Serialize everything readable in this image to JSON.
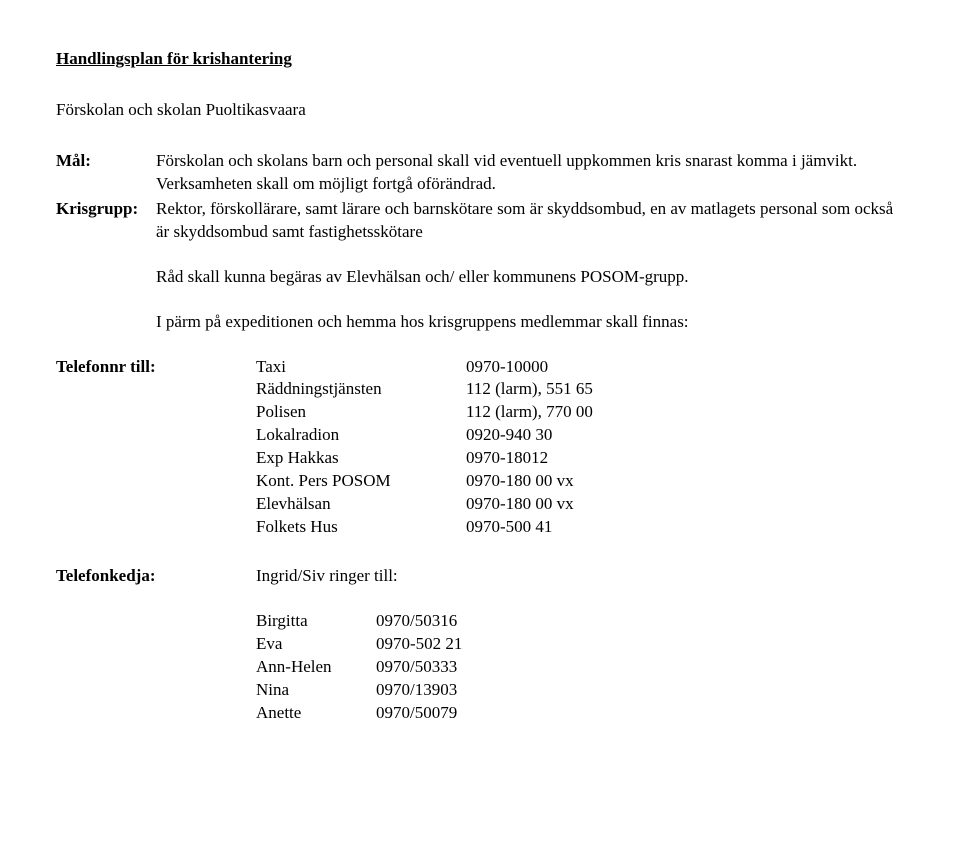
{
  "title": "Handlingsplan för krishantering",
  "subtitle": "Förskolan och skolan Puoltikasvaara",
  "goal": {
    "label": "Mål:",
    "text": "Förskolan och skolans barn och personal skall vid eventuell uppkommen kris snarast komma i jämvikt. Verksamheten skall om möjligt fortgå oförändrad."
  },
  "group": {
    "label": "Krisgrupp:",
    "text": "Rektor, förskollärare, samt lärare och barnskötare som är skyddsombud, en av matlagets personal som också är skyddsombud samt fastighetsskötare"
  },
  "advice": "Råd skall kunna begäras av Elevhälsan och/ eller kommunens POSOM-grupp.",
  "binder": "I pärm på expeditionen och hemma hos krisgruppens medlemmar skall finnas:",
  "phones": {
    "label": "Telefonnr till:",
    "rows": [
      {
        "name": "Taxi",
        "num": "0970-10000"
      },
      {
        "name": "Räddningstjänsten",
        "num": "112 (larm), 551 65"
      },
      {
        "name": "Polisen",
        "num": "112 (larm), 770 00"
      },
      {
        "name": "Lokalradion",
        "num": "0920-940 30"
      },
      {
        "name": "Exp Hakkas",
        "num": "0970-18012"
      },
      {
        "name": "Kont. Pers POSOM",
        "num": "0970-180 00 vx"
      },
      {
        "name": "Elevhälsan",
        "num": "0970-180 00 vx"
      },
      {
        "name": "Folkets Hus",
        "num": "0970-500 41"
      }
    ]
  },
  "chain": {
    "label": "Telefonkedja:",
    "intro": "Ingrid/Siv ringer till:",
    "rows": [
      {
        "name": "Birgitta",
        "num": "0970/50316"
      },
      {
        "name": "Eva",
        "num": "0970-502 21"
      },
      {
        "name": "Ann-Helen",
        "num": "0970/50333"
      },
      {
        "name": "Nina",
        "num": "0970/13903"
      },
      {
        "name": "Anette",
        "num": "0970/50079"
      }
    ]
  }
}
